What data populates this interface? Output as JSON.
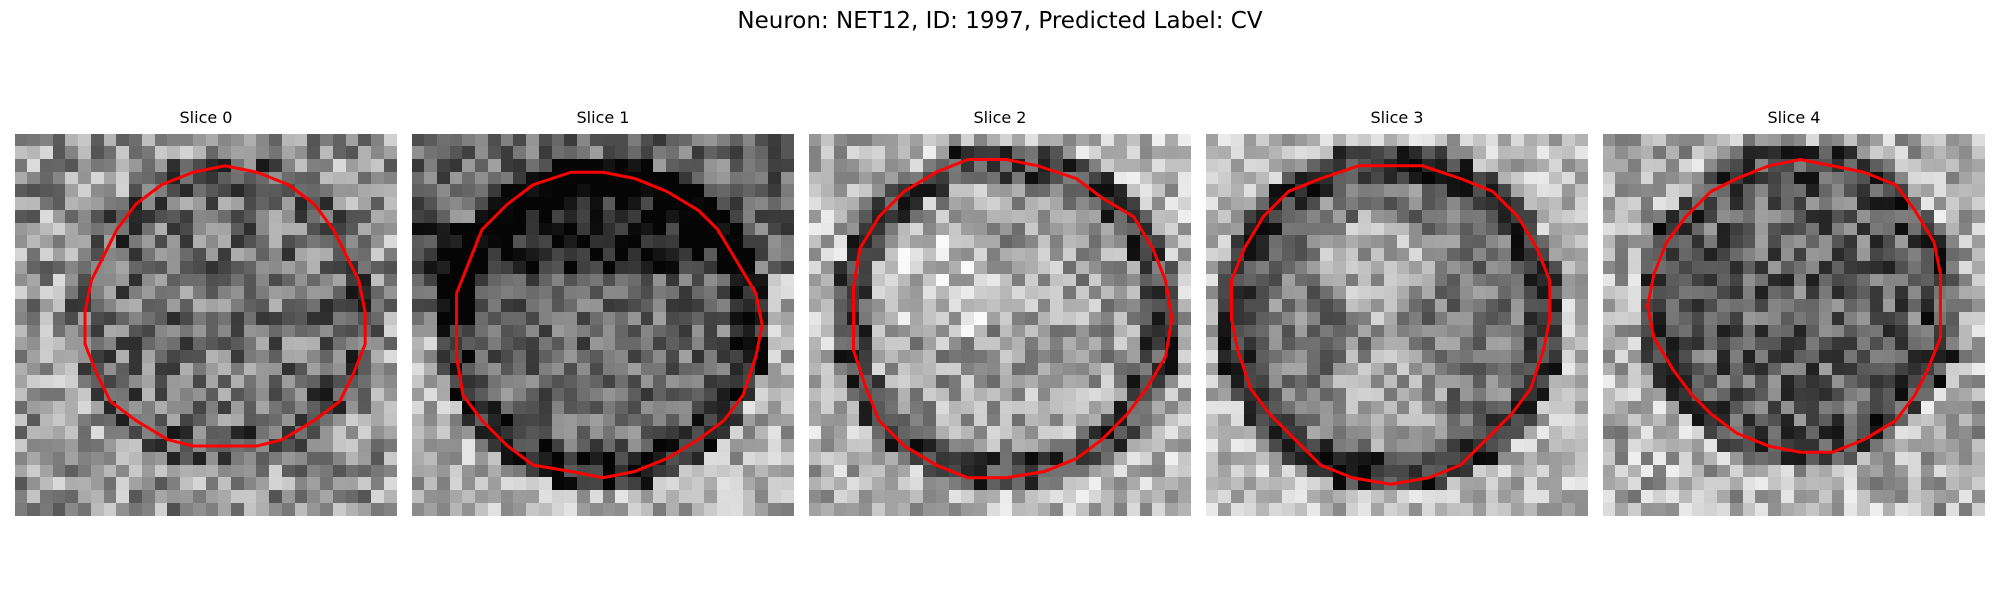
{
  "figure": {
    "title": "Neuron: NET12, ID: 1997, Predicted Label: CV"
  },
  "colors": {
    "contour": "#ff0000",
    "background": "#ffffff"
  },
  "panels": [
    {
      "title": "Slice 0",
      "interior_tone": "mid-gray, uniform noise",
      "seed": 11
    },
    {
      "title": "Slice 1",
      "interior_tone": "dark band at top, mid-gray lower",
      "seed": 23
    },
    {
      "title": "Slice 2",
      "interior_tone": "light gray, bright upper-left",
      "seed": 37
    },
    {
      "title": "Slice 3",
      "interior_tone": "mid-gray with light upper blob, dark rim",
      "seed": 41
    },
    {
      "title": "Slice 4",
      "interior_tone": "dark gray, uniform noise",
      "seed": 53
    }
  ]
}
